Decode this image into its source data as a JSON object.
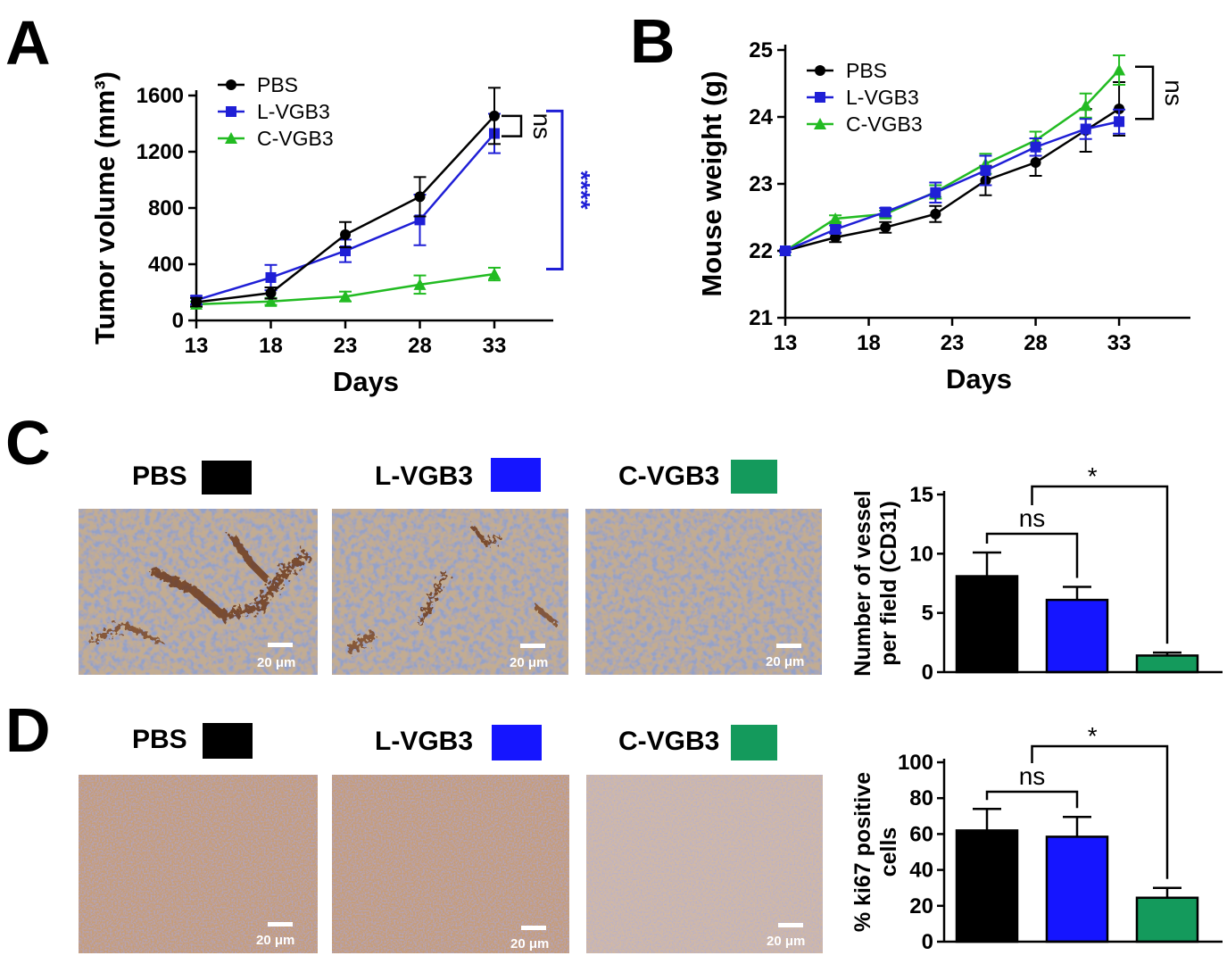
{
  "panels": {
    "A": "A",
    "B": "B",
    "C": "C",
    "D": "D"
  },
  "colors": {
    "PBS": "#000000",
    "L-VGB3": "#1f1fd6",
    "C-VGB3": "#22bb22",
    "C-VGB3_bar": "#149a5c"
  },
  "scale_bar_label": "20 μm",
  "chart_data": [
    {
      "panel": "A",
      "type": "line",
      "xlabel": "Days",
      "ylabel": "Tumor volume (mm³)",
      "xticks": [
        "13",
        "18",
        "23",
        "28",
        "33"
      ],
      "yticks": [
        "0",
        "400",
        "800",
        "1200",
        "1600"
      ],
      "xlim": [
        13,
        33
      ],
      "ylim": [
        0,
        1600
      ],
      "x": [
        13,
        18,
        23,
        28,
        33
      ],
      "series": [
        {
          "name": "PBS",
          "values": [
            130,
            195,
            610,
            880,
            1455
          ],
          "errors": [
            30,
            40,
            90,
            140,
            200
          ]
        },
        {
          "name": "L-VGB3",
          "values": [
            145,
            305,
            495,
            715,
            1330
          ],
          "errors": [
            30,
            90,
            80,
            180,
            140
          ]
        },
        {
          "name": "C-VGB3",
          "values": [
            115,
            135,
            170,
            255,
            330
          ],
          "errors": [
            20,
            25,
            35,
            65,
            45
          ]
        }
      ],
      "annotations": [
        {
          "text": "ns",
          "between": [
            "PBS",
            "L-VGB3"
          ],
          "color": "#000000"
        },
        {
          "text": "****",
          "color": "#1f1fd6"
        }
      ]
    },
    {
      "panel": "B",
      "type": "line",
      "xlabel": "Days",
      "ylabel": "Mouse weight (g)",
      "xticks": [
        "13",
        "18",
        "23",
        "28",
        "33"
      ],
      "yticks": [
        "21",
        "22",
        "23",
        "24",
        "25"
      ],
      "xlim": [
        13,
        35
      ],
      "ylim": [
        21,
        25
      ],
      "x": [
        13,
        16,
        19,
        22,
        25,
        28,
        31,
        33
      ],
      "series": [
        {
          "name": "PBS",
          "values": [
            22.0,
            22.2,
            22.35,
            22.55,
            23.05,
            23.32,
            23.8,
            24.12
          ],
          "errors": [
            0.02,
            0.07,
            0.08,
            0.12,
            0.22,
            0.2,
            0.32,
            0.4
          ]
        },
        {
          "name": "L-VGB3",
          "values": [
            22.0,
            22.32,
            22.58,
            22.87,
            23.2,
            23.55,
            23.82,
            23.93
          ],
          "errors": [
            0.02,
            0.06,
            0.06,
            0.15,
            0.22,
            0.13,
            0.15,
            0.18
          ]
        },
        {
          "name": "C-VGB3",
          "values": [
            22.0,
            22.48,
            22.55,
            22.88,
            23.3,
            23.65,
            24.17,
            24.7
          ],
          "errors": [
            0.02,
            0.05,
            0.05,
            0.1,
            0.15,
            0.13,
            0.18,
            0.22
          ]
        }
      ],
      "annotations": [
        {
          "text": "ns",
          "color": "#000000"
        }
      ]
    },
    {
      "panel": "C",
      "type": "bar",
      "ylabel_lines": [
        "Number of vessel",
        "per field (CD31)"
      ],
      "categories": [
        "PBS",
        "L-VGB3",
        "C-VGB3"
      ],
      "values": [
        8.1,
        6.1,
        1.4
      ],
      "errors": [
        2.0,
        1.1,
        0.25
      ],
      "yticks": [
        "0",
        "5",
        "10",
        "15"
      ],
      "ylim": [
        0,
        15
      ],
      "annotations": [
        {
          "text": "ns",
          "between": [
            "PBS",
            "L-VGB3"
          ]
        },
        {
          "text": "*",
          "between": [
            "L-VGB3",
            "C-VGB3"
          ]
        }
      ]
    },
    {
      "panel": "D",
      "type": "bar",
      "ylabel_lines": [
        "% ki67 positive",
        "cells"
      ],
      "categories": [
        "PBS",
        "L-VGB3",
        "C-VGB3"
      ],
      "values": [
        62,
        58.5,
        24.5
      ],
      "errors": [
        12,
        11,
        5.5
      ],
      "yticks": [
        "0",
        "20",
        "40",
        "60",
        "80",
        "100"
      ],
      "ylim": [
        0,
        100
      ],
      "annotations": [
        {
          "text": "ns",
          "between": [
            "PBS",
            "L-VGB3"
          ]
        },
        {
          "text": "*",
          "between": [
            "L-VGB3",
            "C-VGB3"
          ]
        }
      ]
    }
  ]
}
